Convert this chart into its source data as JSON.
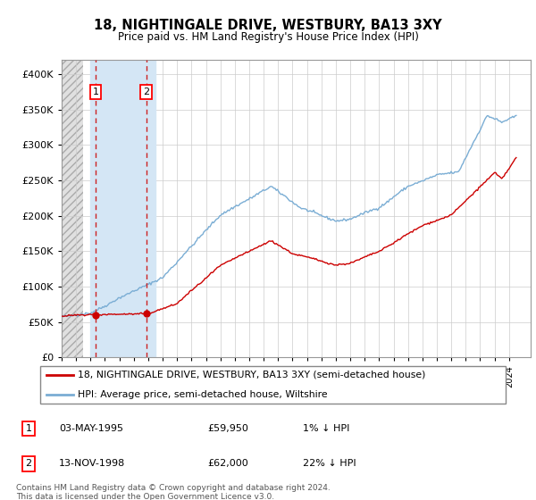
{
  "title": "18, NIGHTINGALE DRIVE, WESTBURY, BA13 3XY",
  "subtitle": "Price paid vs. HM Land Registry's House Price Index (HPI)",
  "ylim": [
    0,
    420000
  ],
  "xlim_start": 1993.0,
  "xlim_end": 2025.0,
  "hpi_color": "#7aadd4",
  "price_color": "#cc0000",
  "sale1_date": 1995.35,
  "sale1_price": 59950,
  "sale2_date": 1998.87,
  "sale2_price": 62000,
  "legend_line1": "18, NIGHTINGALE DRIVE, WESTBURY, BA13 3XY (semi-detached house)",
  "legend_line2": "HPI: Average price, semi-detached house, Wiltshire",
  "footnote": "Contains HM Land Registry data © Crown copyright and database right 2024.\nThis data is licensed under the Open Government Licence v3.0.",
  "hatch_end": 1994.5,
  "blue_span_start": 1995.0,
  "blue_span_end": 1999.5
}
